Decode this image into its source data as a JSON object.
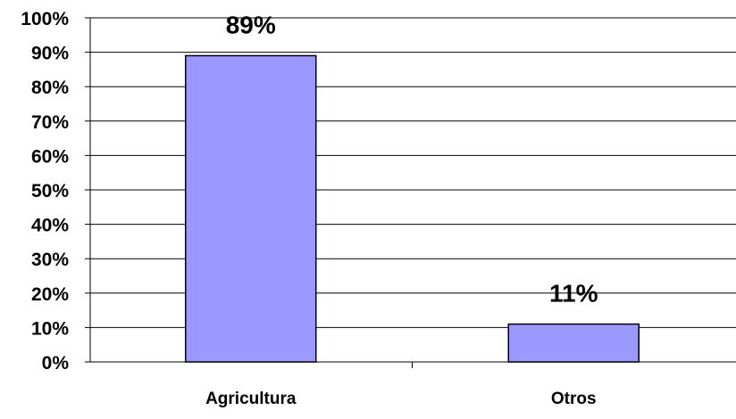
{
  "chart_data": {
    "type": "bar",
    "categories": [
      "Agricultura",
      "Otros"
    ],
    "values": [
      89,
      11
    ],
    "data_labels": [
      "89%",
      "11%"
    ],
    "y_ticks": [
      "0%",
      "10%",
      "20%",
      "30%",
      "40%",
      "50%",
      "60%",
      "70%",
      "80%",
      "90%",
      "100%"
    ],
    "ylim": [
      0,
      100
    ],
    "y_tick_step": 10,
    "title": "",
    "xlabel": "",
    "ylabel": "",
    "grid": true,
    "legend": "none",
    "bar_color": "#9999ff",
    "bar_edge_color": "#000000"
  }
}
